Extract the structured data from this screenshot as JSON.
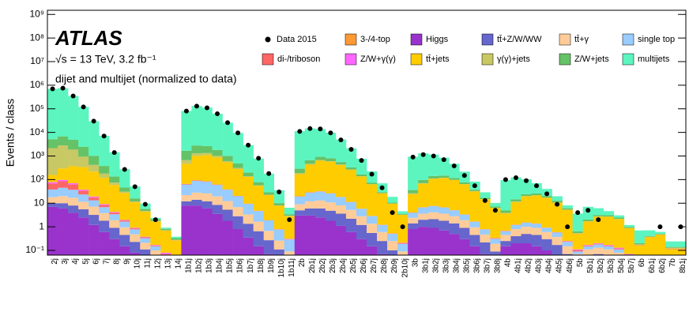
{
  "chart_data": {
    "type": "stacked-bar",
    "ylabel": "Events / class",
    "annotations": [
      "ATLAS",
      "√s = 13 TeV, 3.2 fb⁻¹",
      "dijet and multijet (normalized to data)"
    ],
    "log_scale": true,
    "ylim": [
      0.063,
      1500000000.0
    ],
    "yticks": [
      {
        "value": 0.1,
        "label": "10⁻¹"
      },
      1,
      10,
      {
        "value": 100,
        "label": "10²"
      },
      {
        "value": 1000,
        "label": "10³"
      },
      {
        "value": 10000,
        "label": "10⁴"
      },
      {
        "value": 100000,
        "label": "10⁵"
      },
      {
        "value": 1000000,
        "label": "10⁶"
      },
      {
        "value": 10000000,
        "label": "10⁷"
      },
      {
        "value": 100000000,
        "label": "10⁸"
      },
      {
        "value": 1000000000,
        "label": "10⁹"
      }
    ],
    "categories": [
      "2j",
      "3j",
      "4j",
      "5j",
      "6j",
      "7j",
      "8j",
      "9j",
      "10j",
      "11j",
      "12j",
      "13j",
      "14j",
      "1b1j",
      "1b2j",
      "1b3j",
      "1b4j",
      "1b5j",
      "1b6j",
      "1b7j",
      "1b8j",
      "1b9j",
      "1b10j",
      "1b11j",
      "2b",
      "2b1j",
      "2b2j",
      "2b3j",
      "2b4j",
      "2b5j",
      "2b6j",
      "2b7j",
      "2b8j",
      "2b9j",
      "2b10j",
      "3b",
      "3b1j",
      "3b2j",
      "3b3j",
      "3b4j",
      "3b5j",
      "3b6j",
      "3b7j",
      "3b8j",
      "4b",
      "4b1j",
      "4b2j",
      "4b3j",
      "4b4j",
      "4b5j",
      "4b6j",
      "5b",
      "5b1j",
      "5b2j",
      "5b3j",
      "5b4j",
      "5b7j",
      "6b",
      "6b1j",
      "6b2j",
      "7b",
      "8b1j"
    ],
    "data": {
      "name": "Data 2015",
      "color": "#000000",
      "values": [
        700000,
        750000,
        350000,
        120000,
        30000,
        7000,
        1400,
        270,
        50,
        9,
        2,
        null,
        null,
        80000,
        130000,
        110000,
        62000,
        26000,
        9500,
        2900,
        800,
        180,
        30,
        2,
        11000,
        14500,
        14000,
        9500,
        4800,
        1900,
        650,
        170,
        45,
        4,
        1,
        900,
        1150,
        1000,
        700,
        380,
        150,
        55,
        13,
        5,
        100,
        120,
        90,
        55,
        25,
        9,
        1,
        4,
        5,
        2,
        null,
        null,
        null,
        null,
        null,
        1,
        null,
        1
      ]
    },
    "series": [
      {
        "name": "3-/4-top",
        "color": "#ff9933",
        "values": [
          0.01,
          0.01,
          0.01,
          0.01,
          0.01,
          0.01,
          0.01,
          0.01,
          0.01,
          0.01,
          0.01,
          0.01,
          0.01,
          0.02,
          0.03,
          0.04,
          0.04,
          0.03,
          0.02,
          0.01,
          0.01,
          0.01,
          0.01,
          0.01,
          0.05,
          0.08,
          0.1,
          0.12,
          0.1,
          0.08,
          0.05,
          0.03,
          0.01,
          0.01,
          0.01,
          0.05,
          0.1,
          0.15,
          0.15,
          0.12,
          0.08,
          0.05,
          0.02,
          0.01,
          0.03,
          0.06,
          0.08,
          0.08,
          0.06,
          0.04,
          0.02,
          0.01,
          0.02,
          0.02,
          0.02,
          0.01,
          0.01,
          0.01,
          0.01,
          0.01,
          0.01,
          0.01
        ]
      },
      {
        "name": "Higgs",
        "color": "#9933cc",
        "values": [
          7,
          6,
          4,
          2.5,
          1.2,
          0.6,
          0.3,
          0.15,
          0.08,
          0.04,
          0.02,
          0.01,
          0.01,
          8,
          8,
          6,
          3.5,
          1.8,
          0.8,
          0.35,
          0.15,
          0.07,
          0.03,
          0.01,
          3,
          3,
          2.5,
          1.8,
          1.1,
          0.6,
          0.3,
          0.15,
          0.07,
          0.03,
          0.01,
          0.8,
          1,
          0.9,
          0.7,
          0.5,
          0.3,
          0.15,
          0.07,
          0.03,
          0.15,
          0.2,
          0.2,
          0.15,
          0.1,
          0.05,
          0.02,
          0.02,
          0.03,
          0.03,
          0.02,
          0.01,
          0.01,
          0.01,
          0.01,
          0.01,
          0.01,
          0.01
        ]
      },
      {
        "name": "tt̄+Z/W/WW",
        "color": "#6666cc",
        "values": [
          3,
          4,
          4,
          3,
          2,
          1.2,
          0.6,
          0.3,
          0.15,
          0.07,
          0.03,
          0.01,
          0.01,
          4,
          6,
          6,
          5,
          3.5,
          2,
          1,
          0.5,
          0.2,
          0.08,
          0.03,
          2,
          3,
          3.5,
          3,
          2.5,
          1.6,
          0.9,
          0.4,
          0.18,
          0.07,
          0.03,
          0.6,
          1,
          1.2,
          1.1,
          0.9,
          0.6,
          0.3,
          0.15,
          0.06,
          0.1,
          0.2,
          0.3,
          0.3,
          0.2,
          0.12,
          0.05,
          0.02,
          0.03,
          0.04,
          0.04,
          0.03,
          0.01,
          0.01,
          0.01,
          0.01,
          0.01,
          0.01
        ]
      },
      {
        "name": "tt̄+γ",
        "color": "#ffcc99",
        "values": [
          8,
          10,
          9,
          6,
          4,
          2,
          1,
          0.5,
          0.25,
          0.1,
          0.05,
          0.02,
          0.01,
          10,
          14,
          14,
          11,
          7,
          4,
          2,
          1,
          0.4,
          0.15,
          0.05,
          4,
          6,
          7,
          6,
          4.5,
          3,
          1.6,
          0.8,
          0.35,
          0.15,
          0.05,
          1,
          1.6,
          2,
          1.8,
          1.4,
          1,
          0.5,
          0.25,
          0.1,
          0.2,
          0.4,
          0.5,
          0.45,
          0.3,
          0.2,
          0.08,
          0.03,
          0.05,
          0.06,
          0.05,
          0.04,
          0.02,
          0.01,
          0.01,
          0.01,
          0.01,
          0.01
        ]
      },
      {
        "name": "single top",
        "color": "#99ccff",
        "values": [
          20,
          25,
          20,
          12,
          6,
          3,
          1.5,
          0.7,
          0.3,
          0.12,
          0.05,
          0.02,
          0.01,
          40,
          60,
          55,
          40,
          25,
          13,
          6,
          3,
          1.2,
          0.5,
          0.2,
          10,
          16,
          18,
          15,
          10,
          6,
          3,
          1.5,
          0.6,
          0.25,
          0.1,
          1.5,
          3,
          3.5,
          3,
          2.2,
          1.4,
          0.7,
          0.3,
          0.12,
          0.2,
          0.4,
          0.5,
          0.45,
          0.3,
          0.2,
          0.08,
          0.02,
          0.04,
          0.05,
          0.04,
          0.03,
          0.01,
          0.01,
          0.01,
          0.01,
          0.01,
          0.01
        ]
      },
      {
        "name": "di-/triboson",
        "color": "#ff6666",
        "values": [
          30,
          40,
          25,
          10,
          4,
          1.5,
          0.6,
          0.2,
          0.08,
          0.03,
          0.01,
          0.01,
          0.01,
          3,
          4,
          3,
          2,
          1,
          0.5,
          0.2,
          0.1,
          0.04,
          0.02,
          0.01,
          0.5,
          0.7,
          0.6,
          0.4,
          0.25,
          0.12,
          0.06,
          0.03,
          0.01,
          0.01,
          0.01,
          0.1,
          0.1,
          0.1,
          0.08,
          0.05,
          0.03,
          0.02,
          0.01,
          0.01,
          0.02,
          0.02,
          0.02,
          0.01,
          0.01,
          0.01,
          0.01,
          0.01,
          0.01,
          0.01,
          0.01,
          0.01,
          0.01,
          0.01,
          0.01,
          0.01,
          0.01,
          0.01
        ]
      },
      {
        "name": "Z/W+γ(γ)",
        "color": "#ff66ff",
        "values": [
          10,
          12,
          8,
          4,
          2,
          0.8,
          0.3,
          0.1,
          0.05,
          0.02,
          0.01,
          0.01,
          0.01,
          1,
          1.2,
          1,
          0.6,
          0.3,
          0.15,
          0.06,
          0.03,
          0.01,
          0.01,
          0.01,
          0.2,
          0.3,
          0.3,
          0.2,
          0.1,
          0.05,
          0.02,
          0.01,
          0.01,
          0.01,
          0.01,
          0.03,
          0.04,
          0.04,
          0.03,
          0.02,
          0.01,
          0.01,
          0.01,
          0.01,
          0.01,
          0.01,
          0.01,
          0.01,
          0.01,
          0.01,
          0.01,
          0.01,
          0.01,
          0.01,
          0.01,
          0.01,
          0.01,
          0.01,
          0.01,
          0.01,
          0.01,
          0.01
        ]
      },
      {
        "name": "tt̄+jets",
        "color": "#ffcc00",
        "values": [
          80,
          200,
          300,
          300,
          200,
          110,
          55,
          25,
          10,
          4,
          1.5,
          0.6,
          0.2,
          400,
          900,
          1000,
          800,
          500,
          260,
          120,
          50,
          20,
          7,
          2.5,
          150,
          400,
          600,
          550,
          400,
          250,
          130,
          60,
          25,
          9,
          3,
          20,
          60,
          100,
          110,
          90,
          60,
          30,
          14,
          6,
          3,
          10,
          18,
          20,
          16,
          10,
          5,
          0.4,
          1.5,
          2.5,
          2.5,
          2,
          0.8,
          0.1,
          0.3,
          0.4,
          0.05,
          0.05
        ]
      },
      {
        "name": "γ(γ)+jets",
        "color": "#c8c864",
        "values": [
          2000,
          2500,
          1500,
          600,
          200,
          60,
          15,
          4,
          1,
          0.3,
          0.1,
          0.03,
          0.01,
          200,
          300,
          250,
          150,
          70,
          30,
          10,
          3,
          1,
          0.3,
          0.1,
          20,
          40,
          40,
          30,
          15,
          7,
          3,
          1,
          0.3,
          0.1,
          0.03,
          2,
          4,
          4,
          3,
          2,
          1,
          0.4,
          0.15,
          0.05,
          0.2,
          0.4,
          0.4,
          0.3,
          0.2,
          0.1,
          0.04,
          0.02,
          0.04,
          0.04,
          0.03,
          0.02,
          0.01,
          0.01,
          0.01,
          0.01,
          0.01,
          0.01
        ]
      },
      {
        "name": "Z/W+jets",
        "color": "#66c266",
        "values": [
          3000,
          4000,
          3000,
          1500,
          600,
          200,
          60,
          15,
          4,
          1,
          0.3,
          0.1,
          0.05,
          1000,
          1500,
          1300,
          800,
          400,
          170,
          60,
          20,
          6,
          2,
          0.5,
          100,
          200,
          250,
          200,
          120,
          60,
          25,
          9,
          3,
          1,
          0.3,
          10,
          25,
          30,
          28,
          20,
          12,
          5,
          2,
          0.8,
          1,
          3,
          4,
          4,
          3,
          2,
          0.8,
          0.1,
          0.3,
          0.4,
          0.4,
          0.3,
          0.1,
          0.02,
          0.03,
          0.03,
          0.01,
          0.01
        ]
      },
      {
        "name": "multijets",
        "color": "#5cf5c0",
        "values": [
          690000,
          740000,
          345000,
          118000,
          29000,
          6800,
          1300,
          230,
          35,
          4,
          0.3,
          0.1,
          0.05,
          80000,
          130000,
          110000,
          60000,
          25000,
          9000,
          2700,
          700,
          150,
          25,
          3,
          11000,
          14000,
          13000,
          9000,
          4500,
          1800,
          600,
          150,
          40,
          8,
          1,
          900,
          1200,
          1000,
          700,
          350,
          140,
          45,
          12,
          3,
          90,
          110,
          80,
          45,
          20,
          7,
          2,
          3,
          5,
          3,
          1.5,
          0.6,
          0.2,
          0.5,
          0.3,
          0.1,
          0.1,
          0.1
        ]
      }
    ]
  }
}
